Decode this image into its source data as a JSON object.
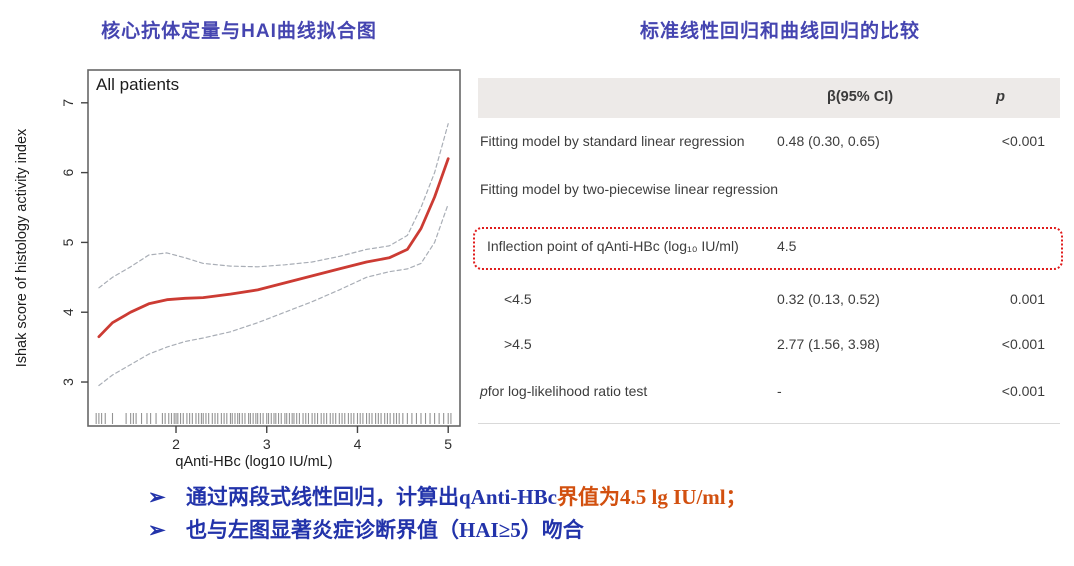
{
  "left": {
    "title": "核心抗体定量与HAI曲线拟合图"
  },
  "right": {
    "title": "标准线性回归和曲线回归的比较"
  },
  "colors": {
    "title_blue": "#4545b0",
    "bullet_blue": "#2233aa",
    "bullet_red": "#d2500f",
    "curve_red": "#cc3b33",
    "band_gray": "#a9aeb6",
    "header_bg": "#edeae8",
    "highlight_border_red": "#e01b1b"
  },
  "table": {
    "headers": {
      "beta": "β(95% CI)",
      "p": "p"
    },
    "rows": [
      {
        "label": "Fitting model by standard linear regression",
        "beta": "0.48 (0.30, 0.65)",
        "p": "<0.001",
        "indent": 0,
        "highlight": false
      },
      {
        "label": "Fitting model by two-piecewise linear regression",
        "beta": "",
        "p": "",
        "indent": 0,
        "highlight": false
      },
      {
        "label": "Inflection point of qAnti-HBc (log₁₀ IU/ml)",
        "beta": "4.5",
        "p": "",
        "indent": 1,
        "highlight": true
      },
      {
        "label": "<4.5",
        "beta": "0.32 (0.13, 0.52)",
        "p": "0.001",
        "indent": 2,
        "highlight": false
      },
      {
        "label": ">4.5",
        "beta": "2.77 (1.56, 3.98)",
        "p": "<0.001",
        "indent": 2,
        "highlight": false
      },
      {
        "label_italic_prefix": "p",
        "label": "for log-likelihood ratio test",
        "beta": "-",
        "p": "<0.001",
        "indent": 0,
        "highlight": false
      }
    ]
  },
  "bullets": [
    {
      "arrow": "➢",
      "parts": [
        {
          "text": "通过两段式线性回归，计算出qAnti-HBc",
          "color": "bullet_blue"
        },
        {
          "text": "界值为4.5 lg IU/ml；",
          "color": "bullet_red"
        }
      ]
    },
    {
      "arrow": "➢",
      "parts": [
        {
          "text": "也与左图显著炎症诊断界值（HAI≥5）吻合",
          "color": "bullet_blue"
        }
      ]
    }
  ],
  "chart_data": {
    "type": "line",
    "title": "All patients",
    "xlabel": "qAnti-HBc (log10 IU/mL)",
    "ylabel": "Ishak score of histology activity index",
    "xlim": [
      1.03,
      5.13
    ],
    "ylim": [
      2.37,
      7.47
    ],
    "xticks": [
      2,
      3,
      4,
      5
    ],
    "yticks": [
      3,
      4,
      5,
      6,
      7
    ],
    "grid": false,
    "legend_position": "none",
    "x": [
      1.15,
      1.3,
      1.5,
      1.7,
      1.9,
      2.1,
      2.3,
      2.6,
      2.9,
      3.2,
      3.5,
      3.8,
      4.1,
      4.35,
      4.55,
      4.7,
      4.85,
      5.0
    ],
    "series": [
      {
        "name": "fitted-curve",
        "style": "solid",
        "color": "#cc3b33",
        "values": [
          3.65,
          3.85,
          4.0,
          4.12,
          4.18,
          4.2,
          4.21,
          4.26,
          4.32,
          4.42,
          4.52,
          4.62,
          4.72,
          4.78,
          4.9,
          5.2,
          5.65,
          6.2
        ]
      },
      {
        "name": "upper-95ci",
        "style": "dashed",
        "color": "#a9aeb6",
        "values": [
          4.35,
          4.5,
          4.65,
          4.82,
          4.85,
          4.78,
          4.7,
          4.66,
          4.65,
          4.68,
          4.72,
          4.8,
          4.9,
          4.95,
          5.1,
          5.5,
          6.0,
          6.7
        ]
      },
      {
        "name": "lower-95ci",
        "style": "dashed",
        "color": "#a9aeb6",
        "values": [
          2.95,
          3.1,
          3.25,
          3.4,
          3.5,
          3.58,
          3.63,
          3.72,
          3.85,
          4.0,
          4.15,
          4.32,
          4.5,
          4.58,
          4.62,
          4.7,
          5.0,
          5.55
        ]
      }
    ],
    "rug_x": [
      1.12,
      1.15,
      1.18,
      1.22,
      1.3,
      1.45,
      1.5,
      1.53,
      1.56,
      1.62,
      1.68,
      1.72,
      1.78,
      1.85,
      1.88,
      1.92,
      1.95,
      1.98,
      2.0,
      2.02,
      2.05,
      2.08,
      2.12,
      2.15,
      2.18,
      2.22,
      2.25,
      2.28,
      2.3,
      2.33,
      2.36,
      2.4,
      2.43,
      2.46,
      2.5,
      2.53,
      2.56,
      2.6,
      2.62,
      2.65,
      2.68,
      2.7,
      2.73,
      2.76,
      2.8,
      2.82,
      2.85,
      2.88,
      2.9,
      2.93,
      2.96,
      3.0,
      3.02,
      3.05,
      3.08,
      3.1,
      3.13,
      3.16,
      3.2,
      3.22,
      3.25,
      3.28,
      3.3,
      3.33,
      3.36,
      3.4,
      3.43,
      3.46,
      3.5,
      3.53,
      3.56,
      3.6,
      3.63,
      3.66,
      3.7,
      3.73,
      3.76,
      3.8,
      3.83,
      3.86,
      3.9,
      3.93,
      3.96,
      4.0,
      4.03,
      4.06,
      4.1,
      4.13,
      4.16,
      4.2,
      4.23,
      4.26,
      4.3,
      4.33,
      4.36,
      4.4,
      4.43,
      4.46,
      4.5,
      4.55,
      4.6,
      4.65,
      4.7,
      4.75,
      4.8,
      4.85,
      4.9,
      4.95,
      5.0,
      5.03
    ]
  }
}
